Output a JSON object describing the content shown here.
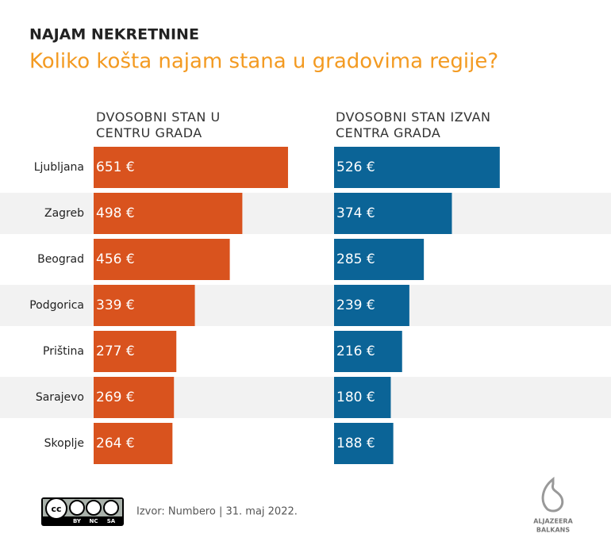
{
  "chart_data": {
    "type": "bar",
    "title": "NAJAM NEKRETNINE",
    "subtitle": "Koliko košta najam stana u gradovima regije?",
    "categories": [
      "Ljubljana",
      "Zagreb",
      "Beograd",
      "Podgorica",
      "Priština",
      "Sarajevo",
      "Skoplje"
    ],
    "series": [
      {
        "name": "DVOSOBNI STAN U CENTRU GRADA",
        "color": "#d9531e",
        "values": [
          651,
          498,
          456,
          339,
          277,
          269,
          264
        ],
        "value_labels": [
          "651 €",
          "498 €",
          "456 €",
          "339 €",
          "277 €",
          "269 €",
          "264 €"
        ]
      },
      {
        "name": "DVOSOBNI STAN IZVAN CENTRA GRADA",
        "color": "#0b6497",
        "values": [
          526,
          374,
          285,
          239,
          216,
          180,
          188
        ],
        "value_labels": [
          "526 €",
          "374 €",
          "285 €",
          "239 €",
          "216 €",
          "180 €",
          "188 €"
        ]
      }
    ],
    "source": "Izvor: Numbero | 31. maj 2022.",
    "license": [
      "BY",
      "NC",
      "SA"
    ],
    "logo": [
      "ALJAZEERA",
      "BALKANS"
    ]
  }
}
